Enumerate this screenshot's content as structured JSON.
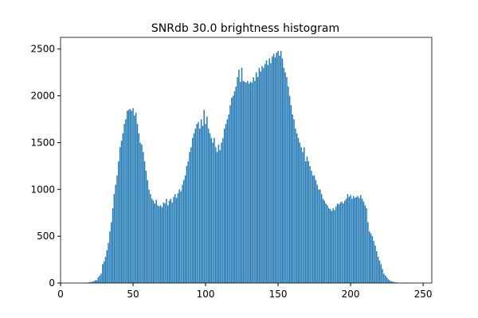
{
  "chart_data": {
    "type": "bar",
    "title": "SNRdb 30.0 brightness histogram",
    "color": "#1f77b4",
    "bar_width": 0.8,
    "x": [
      0,
      1,
      2,
      3,
      4,
      5,
      6,
      7,
      8,
      9,
      10,
      11,
      12,
      13,
      14,
      15,
      16,
      17,
      18,
      19,
      20,
      21,
      22,
      23,
      24,
      25,
      26,
      27,
      28,
      29,
      30,
      31,
      32,
      33,
      34,
      35,
      36,
      37,
      38,
      39,
      40,
      41,
      42,
      43,
      44,
      45,
      46,
      47,
      48,
      49,
      50,
      51,
      52,
      53,
      54,
      55,
      56,
      57,
      58,
      59,
      60,
      61,
      62,
      63,
      64,
      65,
      66,
      67,
      68,
      69,
      70,
      71,
      72,
      73,
      74,
      75,
      76,
      77,
      78,
      79,
      80,
      81,
      82,
      83,
      84,
      85,
      86,
      87,
      88,
      89,
      90,
      91,
      92,
      93,
      94,
      95,
      96,
      97,
      98,
      99,
      100,
      101,
      102,
      103,
      104,
      105,
      106,
      107,
      108,
      109,
      110,
      111,
      112,
      113,
      114,
      115,
      116,
      117,
      118,
      119,
      120,
      121,
      122,
      123,
      124,
      125,
      126,
      127,
      128,
      129,
      130,
      131,
      132,
      133,
      134,
      135,
      136,
      137,
      138,
      139,
      140,
      141,
      142,
      143,
      144,
      145,
      146,
      147,
      148,
      149,
      150,
      151,
      152,
      153,
      154,
      155,
      156,
      157,
      158,
      159,
      160,
      161,
      162,
      163,
      164,
      165,
      166,
      167,
      168,
      169,
      170,
      171,
      172,
      173,
      174,
      175,
      176,
      177,
      178,
      179,
      180,
      181,
      182,
      183,
      184,
      185,
      186,
      187,
      188,
      189,
      190,
      191,
      192,
      193,
      194,
      195,
      196,
      197,
      198,
      199,
      200,
      201,
      202,
      203,
      204,
      205,
      206,
      207,
      208,
      209,
      210,
      211,
      212,
      213,
      214,
      215,
      216,
      217,
      218,
      219,
      220,
      221,
      222,
      223,
      224,
      225,
      226,
      227,
      228,
      229,
      230,
      231,
      232,
      233,
      234,
      235,
      236,
      237,
      238,
      239,
      240,
      241,
      242,
      243,
      244,
      245,
      246,
      247,
      248,
      249,
      250,
      251,
      252,
      253,
      254,
      255
    ],
    "values": [
      0,
      0,
      0,
      0,
      0,
      0,
      0,
      0,
      0,
      0,
      0,
      0,
      0,
      0,
      0,
      0,
      0,
      0,
      2,
      5,
      8,
      10,
      15,
      20,
      30,
      30,
      60,
      80,
      100,
      200,
      230,
      280,
      350,
      430,
      550,
      650,
      800,
      950,
      1050,
      1150,
      1300,
      1450,
      1520,
      1600,
      1700,
      1750,
      1840,
      1850,
      1860,
      1840,
      1870,
      1790,
      1820,
      1700,
      1600,
      1500,
      1480,
      1400,
      1300,
      1200,
      1100,
      1000,
      950,
      900,
      880,
      850,
      890,
      830,
      820,
      830,
      810,
      860,
      850,
      900,
      830,
      880,
      900,
      860,
      920,
      950,
      910,
      960,
      1000,
      980,
      1050,
      1100,
      1150,
      1250,
      1300,
      1400,
      1450,
      1550,
      1600,
      1650,
      1700,
      1720,
      1650,
      1750,
      1680,
      1850,
      1700,
      1780,
      1650,
      1600,
      1550,
      1500,
      1550,
      1450,
      1400,
      1480,
      1420,
      1500,
      1550,
      1650,
      1700,
      1750,
      1800,
      1900,
      1980,
      2000,
      2050,
      2100,
      2200,
      2280,
      2150,
      2300,
      2160,
      2150,
      2140,
      2160,
      2130,
      2150,
      2140,
      2200,
      2160,
      2250,
      2200,
      2300,
      2260,
      2320,
      2300,
      2340,
      2380,
      2330,
      2400,
      2350,
      2420,
      2450,
      2410,
      2460,
      2480,
      2430,
      2480,
      2400,
      2300,
      2250,
      2200,
      2100,
      2000,
      1900,
      1800,
      1750,
      1650,
      1600,
      1550,
      1500,
      1450,
      1400,
      1450,
      1300,
      1350,
      1300,
      1250,
      1200,
      1150,
      1150,
      1100,
      1050,
      1000,
      1000,
      950,
      900,
      880,
      850,
      830,
      800,
      790,
      770,
      800,
      780,
      820,
      850,
      840,
      860,
      870,
      850,
      880,
      900,
      950,
      920,
      940,
      900,
      930,
      910,
      920,
      930,
      910,
      940,
      900,
      870,
      830,
      800,
      650,
      550,
      530,
      500,
      450,
      400,
      340,
      280,
      240,
      200,
      150,
      100,
      80,
      60,
      40,
      30,
      20,
      15,
      10,
      8,
      5,
      3,
      2,
      1,
      0,
      0,
      0,
      0,
      0,
      0,
      0,
      0,
      0,
      0,
      0,
      0,
      0,
      0,
      0,
      0,
      0,
      0,
      0,
      0
    ],
    "xlim": [
      0,
      256
    ],
    "ylim": [
      0,
      2625
    ],
    "xticks": [
      0,
      50,
      100,
      150,
      200,
      250
    ],
    "yticks": [
      0,
      500,
      1000,
      1500,
      2000,
      2500
    ]
  }
}
